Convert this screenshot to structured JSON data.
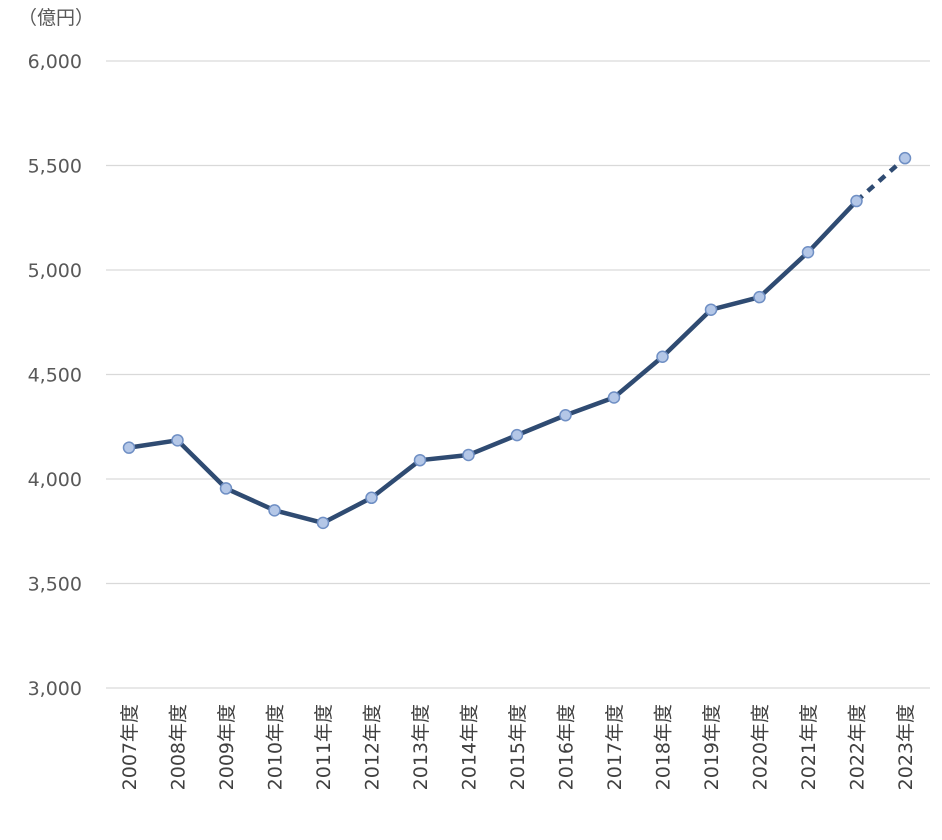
{
  "chart_data": {
    "type": "line",
    "unit_label": "（億円）",
    "categories": [
      "2007年度",
      "2008年度",
      "2009年度",
      "2010年度",
      "2011年度",
      "2012年度",
      "2013年度",
      "2014年度",
      "2015年度",
      "2016年度",
      "2017年度",
      "2018年度",
      "2019年度",
      "2020年度",
      "2021年度",
      "2022年度",
      "2023年度"
    ],
    "values": [
      4150,
      4185,
      3955,
      3850,
      3790,
      3910,
      4090,
      4115,
      4210,
      4305,
      4390,
      4585,
      4810,
      4870,
      5085,
      5330,
      5535
    ],
    "projected_from_index": 15,
    "y_ticks": [
      "3,000",
      "3,500",
      "4,000",
      "4,500",
      "5,000",
      "5,500",
      "6,000"
    ],
    "ylim": [
      3000,
      6000
    ],
    "grid": true,
    "colors": {
      "line": "#2f4b72",
      "marker_fill": "#b4c7e7",
      "marker_stroke": "#6f8fc4",
      "grid": "#d9d9d9"
    }
  }
}
